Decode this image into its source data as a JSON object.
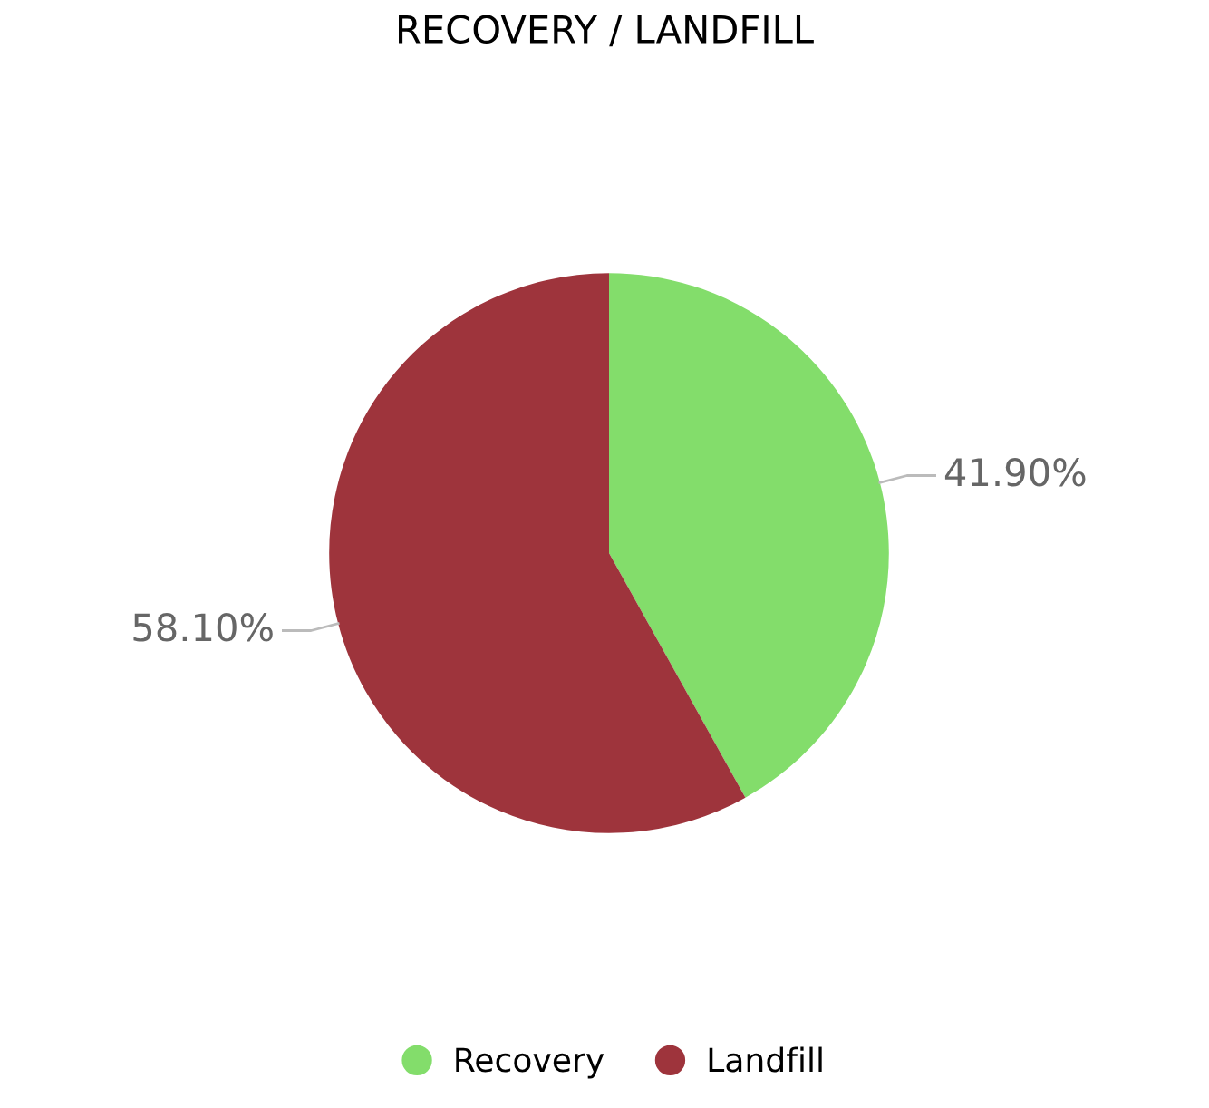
{
  "chart_data": {
    "type": "pie",
    "title": "RECOVERY / LANDFILL",
    "categories": [
      "Recovery",
      "Landfill"
    ],
    "values": [
      41.9,
      58.1
    ],
    "colors": [
      "#83dd6b",
      "#9e343c"
    ],
    "value_labels": [
      "41.90%",
      "58.10%"
    ],
    "legend": "bottom"
  }
}
